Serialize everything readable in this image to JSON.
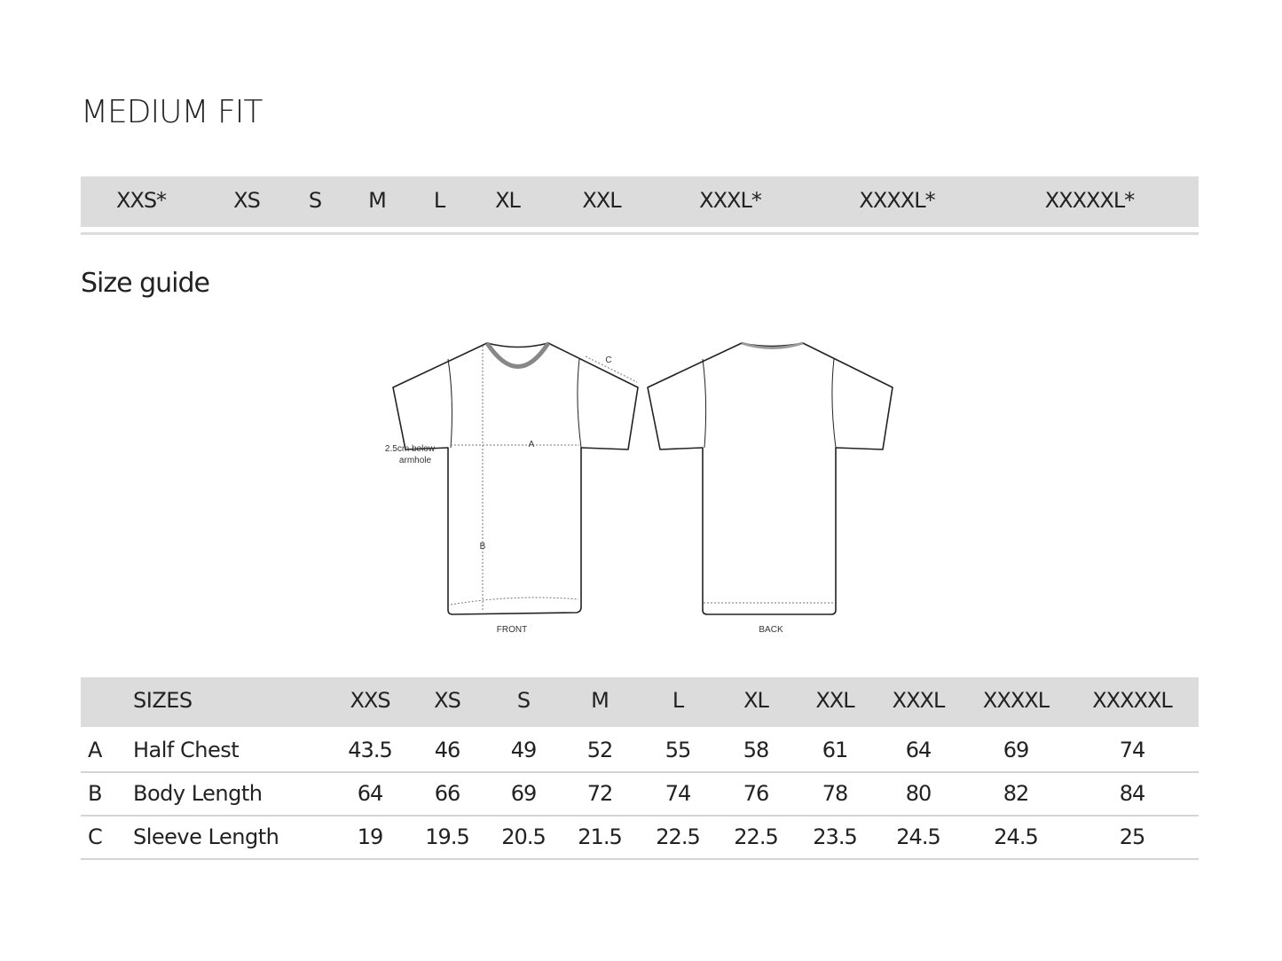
{
  "title": "MEDIUM FIT",
  "available_sizes": [
    "XXS*",
    "XS",
    "S",
    "M",
    "L",
    "XL",
    "XXL",
    "XXXL*",
    "XXXXL*",
    "XXXXXL*"
  ],
  "subtitle": "Size guide",
  "diagram": {
    "front_label": "FRONT",
    "back_label": "BACK",
    "measure_a": "A",
    "measure_b": "B",
    "measure_c": "C",
    "note_line1": "2.5cm below",
    "note_line2": "armhole"
  },
  "table": {
    "header": "SIZES",
    "sizes": [
      "XXS",
      "XS",
      "S",
      "M",
      "L",
      "XL",
      "XXL",
      "XXXL",
      "XXXXL",
      "XXXXXL"
    ],
    "rows": [
      {
        "key": "A",
        "label": "Half Chest",
        "values": [
          "43.5",
          "46",
          "49",
          "52",
          "55",
          "58",
          "61",
          "64",
          "69",
          "74"
        ]
      },
      {
        "key": "B",
        "label": "Body Length",
        "values": [
          "64",
          "66",
          "69",
          "72",
          "74",
          "76",
          "78",
          "80",
          "82",
          "84"
        ]
      },
      {
        "key": "C",
        "label": "Sleeve Length",
        "values": [
          "19",
          "19.5",
          "20.5",
          "21.5",
          "22.5",
          "22.5",
          "23.5",
          "24.5",
          "24.5",
          "25"
        ]
      }
    ]
  }
}
